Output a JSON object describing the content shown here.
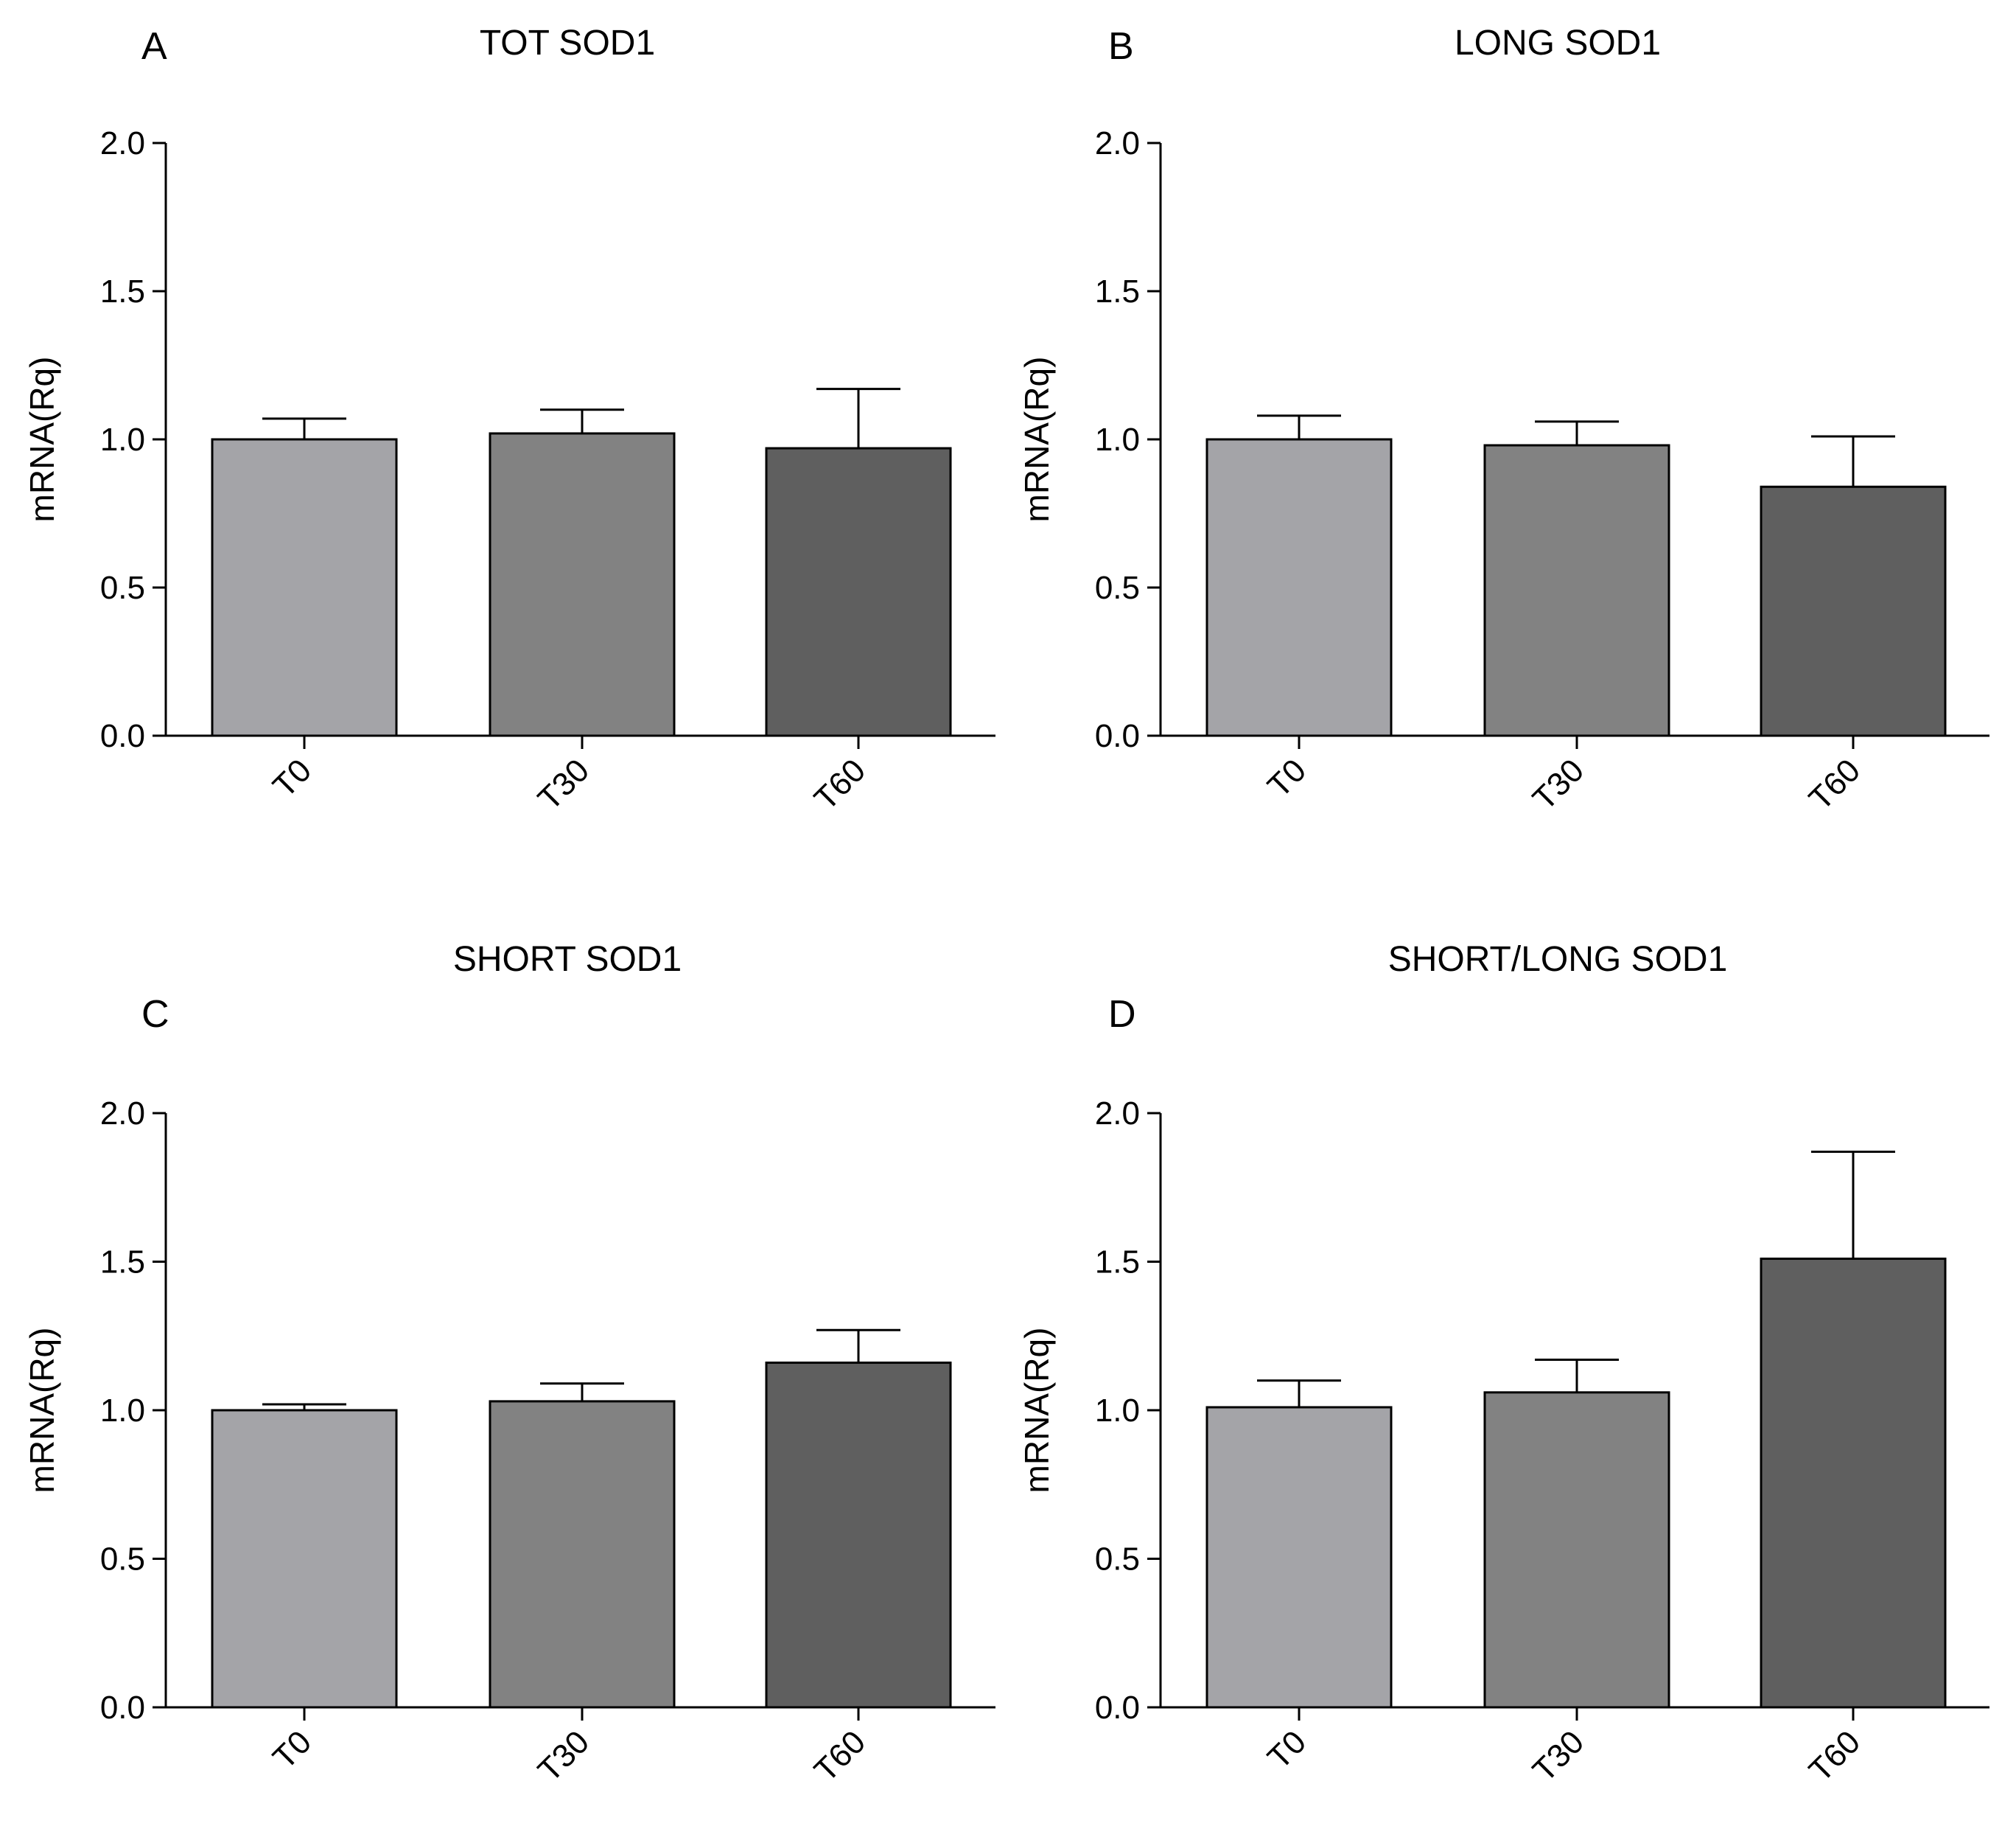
{
  "colors": {
    "T0": "#a4a4a8",
    "T30": "#828282",
    "T60": "#5f5f5f",
    "axis": "#000000",
    "background": "#ffffff"
  },
  "chart_data": [
    {
      "panel": "A",
      "type": "bar",
      "title": "TOT SOD1",
      "xlabel": "",
      "ylabel": "mRNA(Rq)",
      "ylim": [
        0,
        2.0
      ],
      "yticks": [
        "0.0",
        "0.5",
        "1.0",
        "1.5",
        "2.0"
      ],
      "categories": [
        "T0",
        "T30",
        "T60"
      ],
      "values": [
        1.0,
        1.02,
        0.97
      ],
      "errors": [
        0.07,
        0.08,
        0.2
      ]
    },
    {
      "panel": "B",
      "type": "bar",
      "title": "LONG SOD1",
      "xlabel": "",
      "ylabel": "mRNA(Rq)",
      "ylim": [
        0,
        2.0
      ],
      "yticks": [
        "0.0",
        "0.5",
        "1.0",
        "1.5",
        "2.0"
      ],
      "categories": [
        "T0",
        "T30",
        "T60"
      ],
      "values": [
        1.0,
        0.98,
        0.84
      ],
      "errors": [
        0.08,
        0.08,
        0.17
      ]
    },
    {
      "panel": "C",
      "type": "bar",
      "title": "SHORT SOD1",
      "xlabel": "",
      "ylabel": "mRNA(Rq)",
      "ylim": [
        0,
        2.0
      ],
      "yticks": [
        "0.0",
        "0.5",
        "1.0",
        "1.5",
        "2.0"
      ],
      "categories": [
        "T0",
        "T30",
        "T60"
      ],
      "values": [
        1.0,
        1.03,
        1.16
      ],
      "errors": [
        0.02,
        0.06,
        0.11
      ]
    },
    {
      "panel": "D",
      "type": "bar",
      "title": "SHORT/LONG SOD1",
      "xlabel": "",
      "ylabel": "mRNA(Rq)",
      "ylim": [
        0,
        2.0
      ],
      "yticks": [
        "0.0",
        "0.5",
        "1.0",
        "1.5",
        "2.0"
      ],
      "categories": [
        "T0",
        "T30",
        "T60"
      ],
      "values": [
        1.01,
        1.06,
        1.51
      ],
      "errors": [
        0.09,
        0.11,
        0.36
      ]
    }
  ]
}
